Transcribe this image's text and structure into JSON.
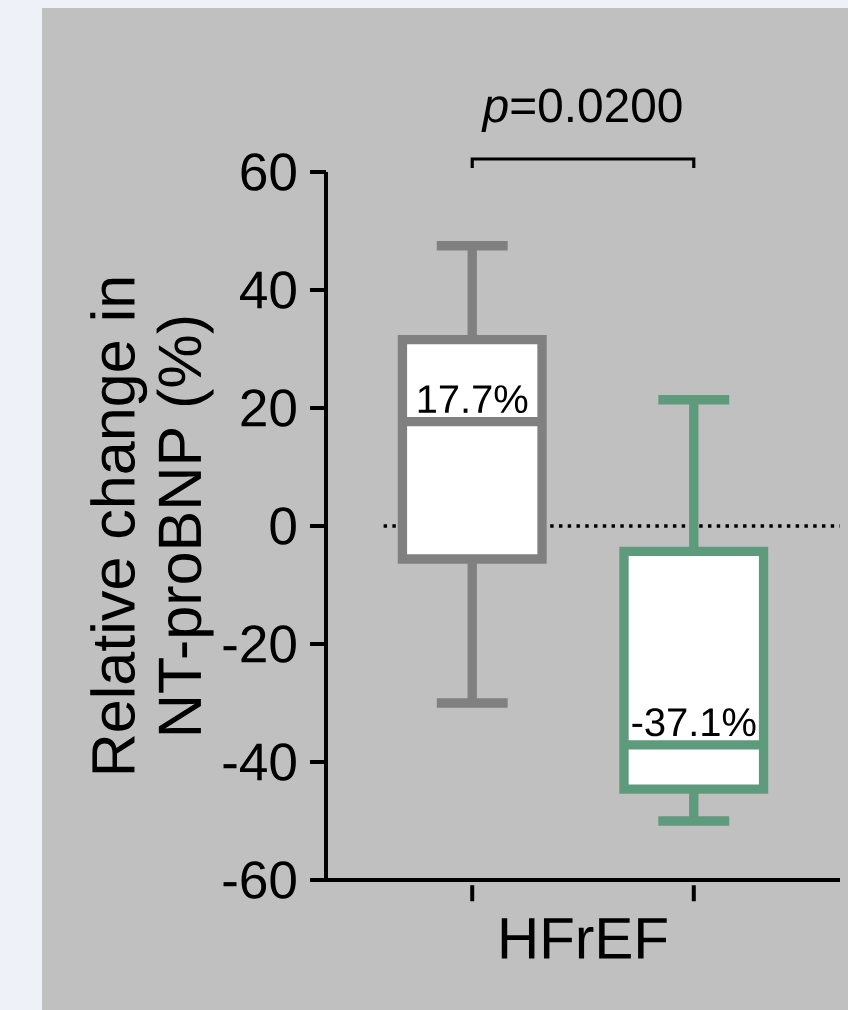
{
  "chart_data": {
    "type": "box",
    "categories": [
      null,
      null
    ],
    "xlabel": "HFrEF",
    "ylabel": "Relative change in\nNT-proBNP (%)",
    "ylim": [
      -60,
      60
    ],
    "yticks": [
      -60,
      -40,
      -20,
      0,
      20,
      40,
      60
    ],
    "boxes": [
      {
        "low": -30,
        "q1": -5.6,
        "median": 17.7,
        "q3": 31.6,
        "high": 47.5
      },
      {
        "low": -50,
        "q1": -44.6,
        "median": -37.1,
        "q3": -4.3,
        "high": 21.4
      }
    ],
    "colors": [
      "#808080",
      "#5e9a7c"
    ],
    "value_labels": [
      "17.7%",
      "-37.1%"
    ],
    "ref_lines": [
      {
        "axis": "y",
        "value": 0,
        "line_style": "dotted",
        "color": "#000000"
      }
    ],
    "annotations": [
      "*p*=0.0200"
    ]
  }
}
